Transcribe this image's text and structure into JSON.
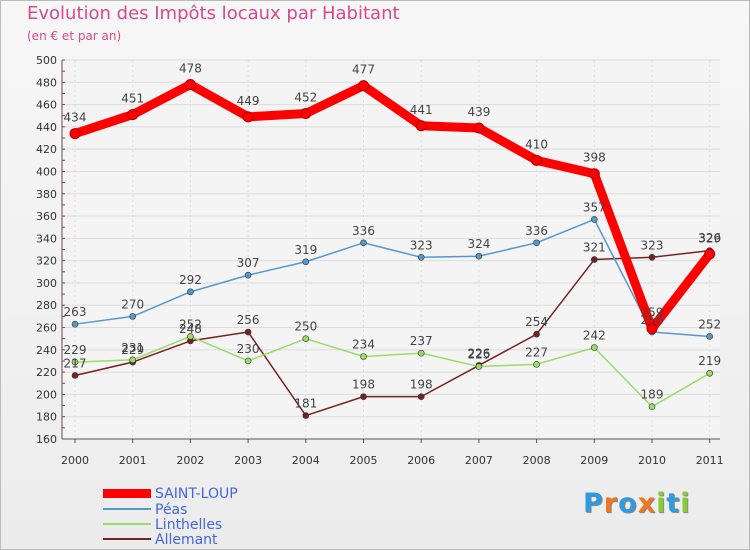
{
  "chart_data": {
    "type": "line",
    "title": "Evolution des Impôts locaux par Habitant",
    "subtitle": "(en € et par an)",
    "xlabel": "",
    "ylabel": "",
    "ylim": [
      160,
      500
    ],
    "yticks": [
      160,
      180,
      200,
      220,
      240,
      260,
      280,
      300,
      320,
      340,
      360,
      380,
      400,
      420,
      440,
      460,
      480,
      500
    ],
    "categories": [
      "2000",
      "2001",
      "2002",
      "2003",
      "2004",
      "2005",
      "2006",
      "2007",
      "2008",
      "2009",
      "2010",
      "2011"
    ],
    "series": [
      {
        "name": "SAINT-LOUP",
        "color": "#ff0000",
        "values": [
          434,
          451,
          478,
          449,
          452,
          477,
          441,
          439,
          410,
          398,
          259,
          326
        ]
      },
      {
        "name": "Péas",
        "color": "#5599cc",
        "values": [
          263,
          270,
          292,
          307,
          319,
          336,
          323,
          324,
          336,
          357,
          256,
          252
        ]
      },
      {
        "name": "Linthelles",
        "color": "#99dd66",
        "values": [
          229,
          231,
          252,
          230,
          250,
          234,
          237,
          225,
          227,
          242,
          189,
          219
        ]
      },
      {
        "name": "Allemant",
        "color": "#772222",
        "values": [
          217,
          229,
          248,
          256,
          181,
          198,
          198,
          226,
          254,
          321,
          323,
          329
        ]
      }
    ]
  },
  "logo": {
    "text": "Proxiti",
    "letters": [
      "P",
      "r",
      "o",
      "x",
      "i",
      "t",
      "i"
    ],
    "colors": [
      "#3399dd",
      "#ee7722",
      "#3399dd",
      "#ee7722",
      "#88cc33",
      "#3399dd",
      "#88cc33"
    ]
  }
}
